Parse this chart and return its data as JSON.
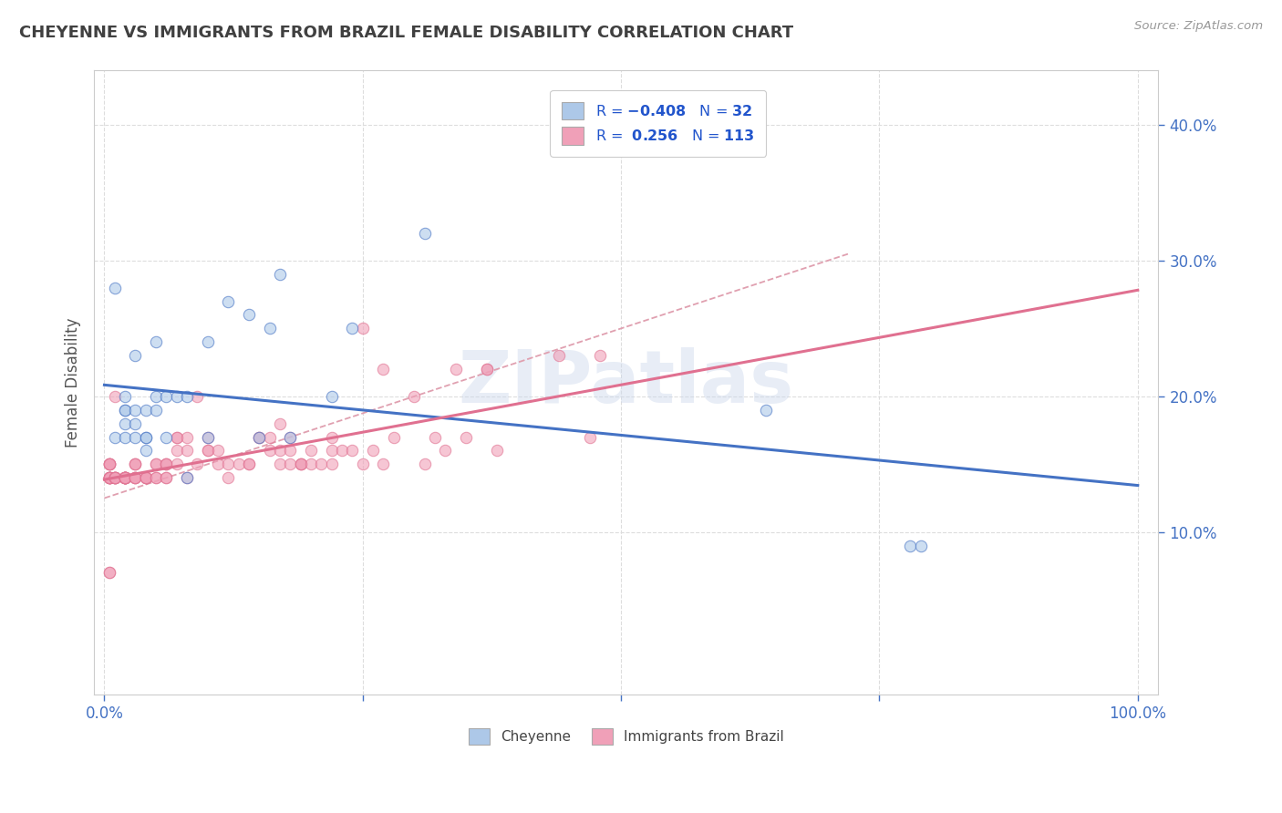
{
  "title": "CHEYENNE VS IMMIGRANTS FROM BRAZIL FEMALE DISABILITY CORRELATION CHART",
  "source": "Source: ZipAtlas.com",
  "ylabel": "Female Disability",
  "watermark": "ZIPatlas",
  "xlim": [
    -0.01,
    1.02
  ],
  "ylim": [
    -0.02,
    0.44
  ],
  "xticks": [
    0.0,
    0.25,
    0.5,
    0.75,
    1.0
  ],
  "xtick_labels": [
    "0.0%",
    "",
    "",
    "",
    "100.0%"
  ],
  "yticks": [
    0.1,
    0.2,
    0.3,
    0.4
  ],
  "ytick_labels": [
    "10.0%",
    "20.0%",
    "30.0%",
    "40.0%"
  ],
  "color_cheyenne": "#adc8e8",
  "color_brazil": "#f0a0b8",
  "line_color_cheyenne": "#4472c4",
  "line_color_brazil": "#e07090",
  "line_color_trend_dashed": "#e0a0b0",
  "cheyenne_x": [
    0.01,
    0.01,
    0.02,
    0.02,
    0.02,
    0.02,
    0.02,
    0.03,
    0.03,
    0.03,
    0.03,
    0.04,
    0.04,
    0.04,
    0.04,
    0.05,
    0.05,
    0.05,
    0.06,
    0.06,
    0.07,
    0.08,
    0.08,
    0.1,
    0.1,
    0.12,
    0.14,
    0.15,
    0.16,
    0.17,
    0.18,
    0.22,
    0.24,
    0.31,
    0.64,
    0.78,
    0.79
  ],
  "cheyenne_y": [
    0.28,
    0.17,
    0.19,
    0.19,
    0.2,
    0.17,
    0.18,
    0.19,
    0.17,
    0.18,
    0.23,
    0.16,
    0.17,
    0.19,
    0.17,
    0.19,
    0.2,
    0.24,
    0.17,
    0.2,
    0.2,
    0.14,
    0.2,
    0.17,
    0.24,
    0.27,
    0.26,
    0.17,
    0.25,
    0.29,
    0.17,
    0.2,
    0.25,
    0.32,
    0.19,
    0.09,
    0.09
  ],
  "brazil_x": [
    0.005,
    0.005,
    0.005,
    0.005,
    0.005,
    0.005,
    0.005,
    0.005,
    0.005,
    0.005,
    0.005,
    0.005,
    0.005,
    0.005,
    0.005,
    0.01,
    0.01,
    0.01,
    0.01,
    0.01,
    0.01,
    0.01,
    0.01,
    0.02,
    0.02,
    0.02,
    0.02,
    0.02,
    0.02,
    0.02,
    0.02,
    0.02,
    0.02,
    0.02,
    0.02,
    0.03,
    0.03,
    0.03,
    0.03,
    0.03,
    0.03,
    0.03,
    0.04,
    0.04,
    0.04,
    0.04,
    0.04,
    0.05,
    0.05,
    0.05,
    0.05,
    0.06,
    0.06,
    0.06,
    0.06,
    0.06,
    0.07,
    0.07,
    0.07,
    0.07,
    0.08,
    0.08,
    0.08,
    0.09,
    0.09,
    0.1,
    0.1,
    0.1,
    0.11,
    0.11,
    0.12,
    0.12,
    0.13,
    0.14,
    0.14,
    0.15,
    0.15,
    0.16,
    0.16,
    0.17,
    0.17,
    0.17,
    0.18,
    0.18,
    0.18,
    0.19,
    0.19,
    0.19,
    0.2,
    0.2,
    0.21,
    0.22,
    0.22,
    0.22,
    0.23,
    0.24,
    0.25,
    0.25,
    0.26,
    0.27,
    0.27,
    0.28,
    0.3,
    0.31,
    0.32,
    0.33,
    0.34,
    0.35,
    0.37,
    0.37,
    0.38,
    0.44,
    0.47,
    0.48
  ],
  "brazil_y": [
    0.14,
    0.14,
    0.14,
    0.15,
    0.15,
    0.15,
    0.15,
    0.15,
    0.14,
    0.14,
    0.14,
    0.14,
    0.14,
    0.07,
    0.07,
    0.14,
    0.14,
    0.14,
    0.14,
    0.14,
    0.14,
    0.14,
    0.2,
    0.14,
    0.14,
    0.14,
    0.14,
    0.14,
    0.14,
    0.14,
    0.14,
    0.14,
    0.14,
    0.14,
    0.14,
    0.14,
    0.14,
    0.14,
    0.14,
    0.15,
    0.15,
    0.15,
    0.14,
    0.14,
    0.14,
    0.14,
    0.14,
    0.14,
    0.14,
    0.15,
    0.15,
    0.14,
    0.14,
    0.15,
    0.15,
    0.15,
    0.15,
    0.16,
    0.17,
    0.17,
    0.14,
    0.16,
    0.17,
    0.15,
    0.2,
    0.16,
    0.16,
    0.17,
    0.15,
    0.16,
    0.14,
    0.15,
    0.15,
    0.15,
    0.15,
    0.17,
    0.17,
    0.17,
    0.16,
    0.15,
    0.16,
    0.18,
    0.15,
    0.16,
    0.17,
    0.15,
    0.15,
    0.15,
    0.15,
    0.16,
    0.15,
    0.15,
    0.16,
    0.17,
    0.16,
    0.16,
    0.25,
    0.15,
    0.16,
    0.15,
    0.22,
    0.17,
    0.2,
    0.15,
    0.17,
    0.16,
    0.22,
    0.17,
    0.22,
    0.22,
    0.16,
    0.23,
    0.17,
    0.23
  ],
  "background_color": "#ffffff",
  "plot_bg_color": "#ffffff",
  "grid_color": "#dddddd",
  "title_color": "#404040",
  "axis_color": "#555555",
  "tick_color": "#4472c4"
}
